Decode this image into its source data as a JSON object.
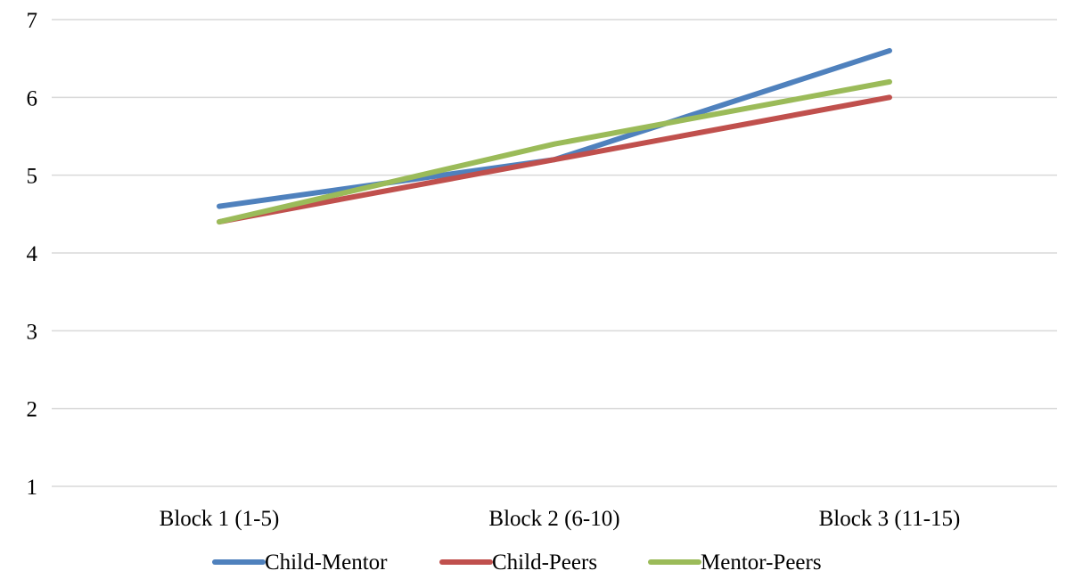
{
  "chart_data": {
    "type": "line",
    "title": "",
    "xlabel": "",
    "ylabel": "",
    "categories": [
      "Block 1 (1-5)",
      "Block 2 (6-10)",
      "Block 3 (11-15)"
    ],
    "series": [
      {
        "name": "Child-Mentor",
        "values": [
          4.6,
          5.2,
          6.6
        ],
        "color": "#4f81bd"
      },
      {
        "name": "Child-Peers",
        "values": [
          4.4,
          5.2,
          6.0
        ],
        "color": "#c0504d"
      },
      {
        "name": "Mentor-Peers",
        "values": [
          4.4,
          5.4,
          6.2
        ],
        "color": "#9bbb59"
      }
    ],
    "ylim": [
      1,
      7
    ],
    "yticks": [
      "1",
      "2",
      "3",
      "4",
      "5",
      "6",
      "7"
    ],
    "grid": true,
    "gridline_color": "#d9d9d9",
    "legend_position": "bottom"
  }
}
